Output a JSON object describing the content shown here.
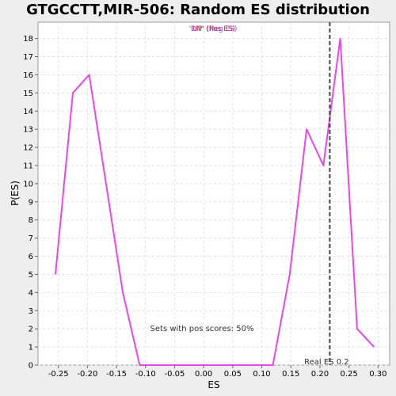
{
  "chart_data": {
    "type": "line",
    "title": "GTGCCTT,MIR-506: Random ES distribution",
    "xlabel": "ES",
    "ylabel": "P(ES)",
    "xlim": [
      -0.285,
      0.32
    ],
    "ylim": [
      0,
      18.9
    ],
    "xticks": [
      "-0.25",
      "-0.20",
      "-0.15",
      "-0.10",
      "-0.05",
      "0.00",
      "0.05",
      "0.10",
      "0.15",
      "0.20",
      "0.25",
      "0.30"
    ],
    "xtick_values": [
      -0.25,
      -0.2,
      -0.15,
      -0.1,
      -0.05,
      0.0,
      0.05,
      0.1,
      0.15,
      0.2,
      0.25,
      0.3
    ],
    "yticks": [
      0,
      1,
      2,
      3,
      4,
      5,
      6,
      7,
      8,
      9,
      10,
      11,
      12,
      13,
      14,
      15,
      16,
      17,
      18
    ],
    "grid": true,
    "legend": {
      "placement": "top-center",
      "entries": [
        {
          "text": "'UP' (Pos ES)",
          "color": "#cc3333"
        },
        {
          "text": "'DN' (Neg ES)",
          "color": "#8a2be2"
        }
      ]
    },
    "series": [
      {
        "color": "#ee44ee",
        "x": [
          -0.255,
          -0.225,
          -0.197,
          -0.168,
          -0.139,
          -0.11,
          -0.082,
          -0.053,
          -0.025,
          0.004,
          0.033,
          0.062,
          0.09,
          0.119,
          0.148,
          0.177,
          0.206,
          0.235,
          0.264,
          0.293
        ],
        "y": [
          5,
          15,
          16,
          10,
          4,
          0,
          0,
          0,
          0,
          0,
          0,
          0,
          0,
          0,
          5,
          13,
          11,
          18,
          2,
          1
        ]
      }
    ],
    "reference_line": {
      "x": 0.217,
      "label": "Real ES 0.2",
      "style": "dashed"
    },
    "annotations": [
      {
        "text": "Sets with pos scores: 50%"
      }
    ]
  }
}
